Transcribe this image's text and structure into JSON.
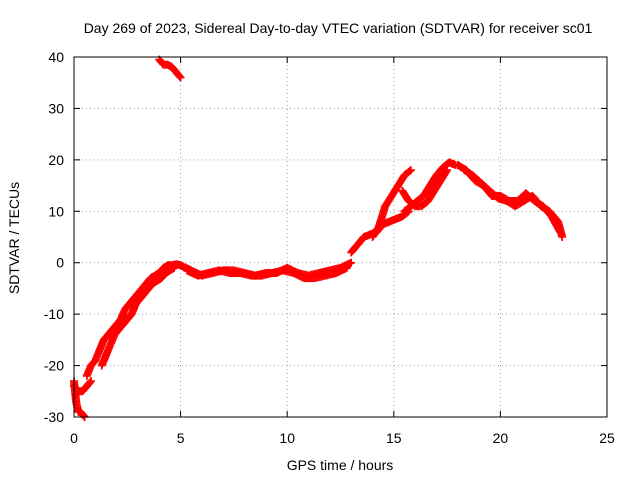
{
  "chart_data": {
    "type": "scatter",
    "title": "Day 269 of 2023, Sidereal Day-to-day VTEC variation (SDTVAR) for receiver sc01",
    "xlabel": "GPS time / hours",
    "ylabel": "SDTVAR / TECUs",
    "xlim": [
      0,
      25
    ],
    "ylim": [
      -30,
      40
    ],
    "x_ticks": [
      0,
      5,
      10,
      15,
      20,
      25
    ],
    "y_ticks": [
      -30,
      -20,
      -10,
      0,
      10,
      20,
      30,
      40
    ],
    "grid": true,
    "marker": "+",
    "colors": {
      "series": "#ff0000",
      "grid": "#a0a0a0",
      "axes": "#000000"
    },
    "series": [
      {
        "name": "SDTVAR",
        "segments": [
          {
            "x": [
              0.0,
              0.1,
              0.2,
              0.3,
              0.4,
              0.5
            ],
            "y": [
              -23,
              -27,
              -29,
              -29,
              -29.5,
              -30
            ]
          },
          {
            "x": [
              0.0,
              0.2,
              0.4,
              0.6,
              0.8
            ],
            "y": [
              -24,
              -25,
              -25,
              -24,
              -23
            ]
          },
          {
            "x": [
              0.6,
              0.8,
              1.0,
              1.2,
              1.4,
              1.6,
              1.8,
              2.0,
              2.2,
              2.4,
              2.6,
              2.8,
              3.0,
              3.2,
              3.4,
              3.6,
              3.8,
              4.0,
              4.2,
              4.4,
              4.6,
              4.8,
              5.0
            ],
            "y": [
              -22,
              -20,
              -19,
              -17,
              -15,
              -14,
              -13,
              -12,
              -11,
              -9,
              -8,
              -7,
              -6,
              -5,
              -4,
              -3,
              -2.5,
              -2,
              -1,
              -0.5,
              -0.5,
              -0.3,
              -0.5
            ]
          },
          {
            "x": [
              1.3,
              1.5,
              1.7,
              1.9,
              2.1,
              2.3,
              2.5,
              2.7,
              2.9,
              3.1,
              3.3,
              3.5,
              3.7,
              3.9,
              4.1,
              4.3,
              4.5,
              4.7
            ],
            "y": [
              -20,
              -18,
              -16,
              -14,
              -13,
              -12,
              -11,
              -10,
              -8,
              -7,
              -6,
              -5,
              -4,
              -3.5,
              -3,
              -2,
              -1.5,
              -1
            ]
          },
          {
            "x": [
              4.0,
              4.2,
              4.4,
              4.6,
              4.8,
              5.0
            ],
            "y": [
              39.5,
              38.5,
              38.5,
              38,
              37,
              36
            ]
          },
          {
            "x": [
              5.0,
              5.5,
              6.0,
              6.5,
              7.0,
              7.5,
              8.0,
              8.5,
              9.0,
              9.5,
              10.0,
              10.5,
              11.0,
              11.5,
              12.0,
              12.5,
              13.0
            ],
            "y": [
              -0.5,
              -1.5,
              -2.5,
              -2,
              -1.5,
              -1.5,
              -2,
              -2.5,
              -2,
              -2,
              -1,
              -2,
              -2.5,
              -2,
              -1.5,
              -1,
              0
            ]
          },
          {
            "x": [
              5.3,
              5.8,
              6.3,
              6.8,
              7.3,
              7.8,
              8.3,
              8.8,
              9.3,
              9.8,
              10.3,
              10.8,
              11.3,
              11.8,
              12.3,
              12.8
            ],
            "y": [
              -1.5,
              -2.5,
              -2,
              -1.5,
              -2,
              -2,
              -2.5,
              -2.5,
              -2,
              -1.5,
              -2,
              -3,
              -3,
              -2.5,
              -2,
              -1
            ]
          },
          {
            "x": [
              13.0,
              13.3,
              13.6,
              13.9,
              14.2,
              14.5,
              14.8,
              15.1,
              15.4,
              15.7
            ],
            "y": [
              2,
              3.5,
              5,
              5.5,
              6,
              7.5,
              8,
              8.5,
              9,
              10
            ]
          },
          {
            "x": [
              14.0,
              14.3,
              14.6,
              14.9,
              15.2,
              15.5,
              15.8
            ],
            "y": [
              5,
              7,
              11,
              13,
              15,
              17,
              18
            ]
          },
          {
            "x": [
              15.5,
              15.8,
              16.1,
              16.4,
              16.7,
              17.0,
              17.3,
              17.6,
              17.9
            ],
            "y": [
              10,
              11,
              12,
              13,
              15,
              17,
              18.5,
              19.5,
              19
            ]
          },
          {
            "x": [
              15.4,
              15.7,
              16.0,
              16.3,
              16.6,
              16.9,
              17.2,
              17.5
            ],
            "y": [
              14,
              12,
              11,
              11,
              12,
              14,
              16,
              18
            ]
          },
          {
            "x": [
              18.0,
              18.4,
              18.8,
              19.2,
              19.6,
              20.0,
              20.4,
              20.8,
              21.2,
              21.6,
              22.0,
              22.4,
              22.8
            ],
            "y": [
              19,
              18,
              16,
              15,
              13,
              13,
              12,
              12,
              13.5,
              12,
              11,
              9,
              6
            ]
          },
          {
            "x": [
              18.3,
              18.7,
              19.1,
              19.5,
              19.9,
              20.3,
              20.7,
              21.1,
              21.5,
              21.9,
              22.3,
              22.7,
              22.9
            ],
            "y": [
              18,
              17,
              15.5,
              14,
              12.5,
              12,
              11,
              12,
              13,
              11,
              10,
              8,
              5
            ]
          }
        ]
      }
    ]
  }
}
